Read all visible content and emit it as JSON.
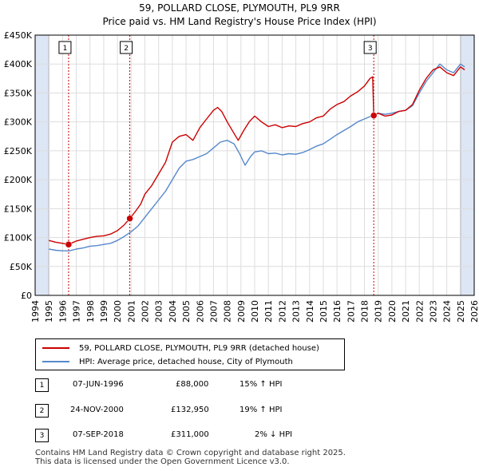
{
  "chart_data": {
    "type": "line",
    "title": "59, POLLARD CLOSE, PLYMOUTH, PL9 9RR",
    "subtitle": "Price paid vs. HM Land Registry's House Price Index (HPI)",
    "xlim": [
      1994.0,
      2026.0
    ],
    "ylim": [
      0,
      450000
    ],
    "x_ticks": [
      "1994",
      "1995",
      "1996",
      "1997",
      "1998",
      "1999",
      "2000",
      "2001",
      "2002",
      "2003",
      "2004",
      "2005",
      "2006",
      "2007",
      "2008",
      "2009",
      "2010",
      "2011",
      "2012",
      "2013",
      "2014",
      "2015",
      "2016",
      "2017",
      "2018",
      "2019",
      "2020",
      "2021",
      "2022",
      "2023",
      "2024",
      "2025",
      "2026"
    ],
    "y_ticks": [
      {
        "value": 0,
        "label": "£0"
      },
      {
        "value": 50000,
        "label": "£50K"
      },
      {
        "value": 100000,
        "label": "£100K"
      },
      {
        "value": 150000,
        "label": "£150K"
      },
      {
        "value": 200000,
        "label": "£200K"
      },
      {
        "value": 250000,
        "label": "£250K"
      },
      {
        "value": 300000,
        "label": "£300K"
      },
      {
        "value": 350000,
        "label": "£350K"
      },
      {
        "value": 400000,
        "label": "£400K"
      },
      {
        "value": 450000,
        "label": "£450K"
      }
    ],
    "grid": true,
    "shaded_ranges": [
      [
        1994.0,
        1995.0
      ],
      [
        2025.0,
        2026.0
      ]
    ],
    "colors": {
      "property": "#cc0000",
      "hpi": "#5588cc",
      "grid": "#dddddd",
      "shade": "#dde6f5",
      "marker_line": "#cc0000"
    },
    "series": [
      {
        "name": "59, POLLARD CLOSE, PLYMOUTH, PL9 9RR (detached house)",
        "x": [
          1995.0,
          1995.5,
          1996.0,
          1996.44,
          1997.0,
          1997.5,
          1998.0,
          1998.5,
          1999.0,
          1999.5,
          2000.0,
          2000.5,
          2000.9,
          2001.3,
          2001.7,
          2002.0,
          2002.5,
          2003.0,
          2003.5,
          2004.0,
          2004.5,
          2005.0,
          2005.5,
          2006.0,
          2006.5,
          2007.0,
          2007.3,
          2007.6,
          2008.0,
          2008.5,
          2008.8,
          2009.2,
          2009.6,
          2010.0,
          2010.5,
          2011.0,
          2011.5,
          2012.0,
          2012.5,
          2013.0,
          2013.5,
          2014.0,
          2014.5,
          2015.0,
          2015.5,
          2016.0,
          2016.5,
          2017.0,
          2017.5,
          2018.0,
          2018.4,
          2018.6,
          2018.68,
          2019.0,
          2019.5,
          2020.0,
          2020.5,
          2021.0,
          2021.5,
          2022.0,
          2022.5,
          2023.0,
          2023.5,
          2024.0,
          2024.5,
          2025.0,
          2025.3
        ],
        "values": [
          95000,
          92000,
          90000,
          88000,
          94000,
          97000,
          100000,
          102000,
          103000,
          106000,
          112000,
          122000,
          132950,
          145000,
          158000,
          175000,
          190000,
          210000,
          230000,
          265000,
          275000,
          278000,
          268000,
          290000,
          305000,
          320000,
          325000,
          318000,
          300000,
          280000,
          268000,
          285000,
          300000,
          310000,
          300000,
          292000,
          295000,
          290000,
          293000,
          292000,
          297000,
          300000,
          307000,
          310000,
          322000,
          330000,
          335000,
          345000,
          352000,
          362000,
          375000,
          378000,
          311000,
          315000,
          310000,
          312000,
          318000,
          320000,
          330000,
          355000,
          375000,
          390000,
          395000,
          385000,
          380000,
          395000,
          390000
        ]
      },
      {
        "name": "HPI: Average price, detached house, City of Plymouth",
        "x": [
          1995.0,
          1995.5,
          1996.0,
          1996.5,
          1997.0,
          1997.5,
          1998.0,
          1998.5,
          1999.0,
          1999.5,
          2000.0,
          2000.5,
          2001.0,
          2001.5,
          2002.0,
          2002.5,
          2003.0,
          2003.5,
          2004.0,
          2004.5,
          2005.0,
          2005.5,
          2006.0,
          2006.5,
          2007.0,
          2007.5,
          2008.0,
          2008.5,
          2008.9,
          2009.3,
          2009.7,
          2010.0,
          2010.5,
          2011.0,
          2011.5,
          2012.0,
          2012.5,
          2013.0,
          2013.5,
          2014.0,
          2014.5,
          2015.0,
          2015.5,
          2016.0,
          2016.5,
          2017.0,
          2017.5,
          2018.0,
          2018.5,
          2019.0,
          2019.5,
          2020.0,
          2020.5,
          2021.0,
          2021.5,
          2022.0,
          2022.5,
          2023.0,
          2023.5,
          2024.0,
          2024.5,
          2025.0,
          2025.3
        ],
        "values": [
          80000,
          78000,
          77000,
          77000,
          80000,
          82000,
          85000,
          86000,
          88000,
          90000,
          95000,
          102000,
          110000,
          120000,
          135000,
          150000,
          165000,
          180000,
          200000,
          220000,
          232000,
          235000,
          240000,
          245000,
          255000,
          265000,
          268000,
          262000,
          245000,
          225000,
          240000,
          248000,
          250000,
          245000,
          246000,
          243000,
          245000,
          244000,
          247000,
          252000,
          258000,
          262000,
          270000,
          278000,
          285000,
          292000,
          300000,
          305000,
          310000,
          315000,
          313000,
          315000,
          318000,
          320000,
          328000,
          350000,
          370000,
          385000,
          400000,
          390000,
          385000,
          400000,
          395000
        ]
      }
    ],
    "sales": [
      {
        "label": "1",
        "x": 1996.44,
        "value": 88000
      },
      {
        "label": "2",
        "x": 2000.9,
        "value": 132950
      },
      {
        "label": "3",
        "x": 2018.68,
        "value": 311000
      }
    ]
  },
  "legend": {
    "property": "59, POLLARD CLOSE, PLYMOUTH, PL9 9RR (detached house)",
    "hpi": "HPI: Average price, detached house, City of Plymouth"
  },
  "sales_table": [
    {
      "num": "1",
      "date": "07-JUN-1996",
      "price": "£88,000",
      "hpi": "15% ↑ HPI"
    },
    {
      "num": "2",
      "date": "24-NOV-2000",
      "price": "£132,950",
      "hpi": "19% ↑ HPI"
    },
    {
      "num": "3",
      "date": "07-SEP-2018",
      "price": "£311,000",
      "hpi": "2% ↓ HPI"
    }
  ],
  "footer": {
    "line1": "Contains HM Land Registry data © Crown copyright and database right 2025.",
    "line2": "This data is licensed under the Open Government Licence v3.0."
  }
}
